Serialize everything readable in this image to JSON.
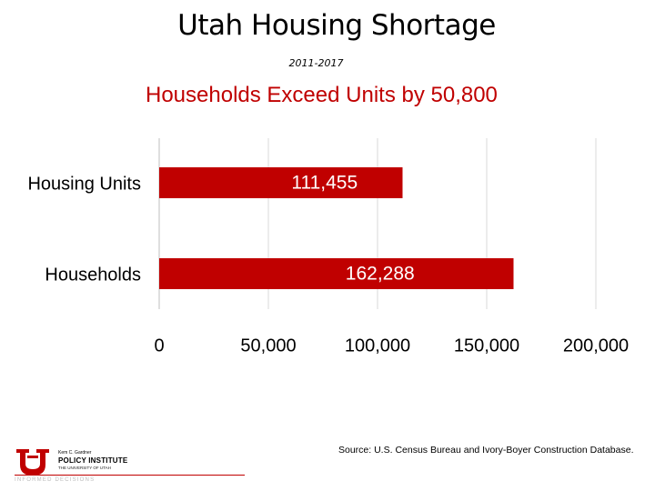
{
  "title": "Utah Housing Shortage",
  "subtitle": "2011-2017",
  "headline": "Households Exceed Units by 50,800",
  "source": "Source: U.S. Census Bureau and Ivory-Boyer Construction Database.",
  "logo": {
    "small_text": "Kem C. Gardner",
    "name": "POLICY INSTITUTE",
    "university": "THE UNIVERSITY OF UTAH",
    "tagline": "INFORMED DECISIONS"
  },
  "colors": {
    "bar": "#c00000",
    "title_accent": "#c00000",
    "gridline": "#d9d9d9"
  },
  "chart_data": {
    "type": "bar",
    "orientation": "horizontal",
    "categories": [
      "Housing Units",
      "Households"
    ],
    "values": [
      111455,
      162288
    ],
    "value_labels": [
      "111,455",
      "162,288"
    ],
    "xlim": [
      0,
      200000
    ],
    "x_ticks": [
      0,
      50000,
      100000,
      150000,
      200000
    ],
    "x_tick_labels": [
      "0",
      "50,000",
      "100,000",
      "150,000",
      "200,000"
    ],
    "grid": true,
    "legend": "none"
  }
}
